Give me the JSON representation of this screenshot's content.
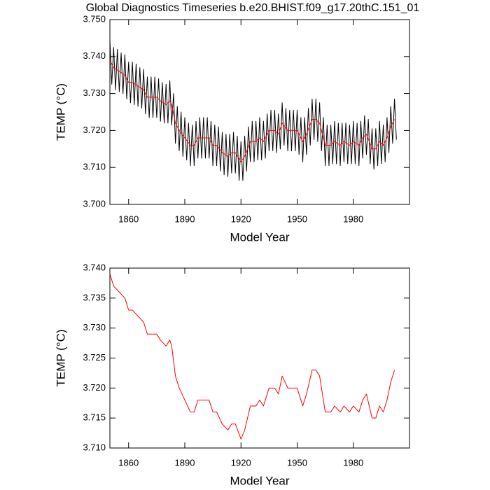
{
  "chart_data": [
    {
      "type": "line",
      "title": "Global Diagnostics Timeseries b.e20.BHIST.f09_g17.20thC.151_01",
      "xlabel": "Model Year",
      "ylabel": "TEMP (°C)",
      "xlim": [
        1850,
        2010
      ],
      "xticks": [
        1860,
        1890,
        1920,
        1950,
        1980
      ],
      "ylim": [
        3.7,
        3.75
      ],
      "yticks": [
        {
          "value": 3.7,
          "label": "3.700"
        },
        {
          "value": 3.71,
          "label": "3.710"
        },
        {
          "value": 3.72,
          "label": "3.720"
        },
        {
          "value": 3.73,
          "label": "3.730"
        },
        {
          "value": 3.74,
          "label": "3.740"
        },
        {
          "value": 3.75,
          "label": "3.750"
        }
      ],
      "series": [
        {
          "color": "#000000",
          "x": [
            1850,
            1851,
            1852,
            1853,
            1854,
            1855,
            1856,
            1857,
            1858,
            1859,
            1860,
            1861,
            1862,
            1863,
            1864,
            1865,
            1866,
            1867,
            1868,
            1869,
            1870,
            1871,
            1872,
            1873,
            1874,
            1875,
            1876,
            1877,
            1878,
            1879,
            1880,
            1881,
            1882,
            1883,
            1884,
            1885,
            1886,
            1887,
            1888,
            1889,
            1890,
            1891,
            1892,
            1893,
            1894,
            1895,
            1896,
            1897,
            1898,
            1899,
            1900,
            1901,
            1902,
            1903,
            1904,
            1905,
            1906,
            1907,
            1908,
            1909,
            1910,
            1911,
            1912,
            1913,
            1914,
            1915,
            1916,
            1917,
            1918,
            1919,
            1920,
            1921,
            1922,
            1923,
            1924,
            1925,
            1926,
            1927,
            1928,
            1929,
            1930,
            1931,
            1932,
            1933,
            1934,
            1935,
            1936,
            1937,
            1938,
            1939,
            1940,
            1941,
            1942,
            1943,
            1944,
            1945,
            1946,
            1947,
            1948,
            1949,
            1950,
            1951,
            1952,
            1953,
            1954,
            1955,
            1956,
            1957,
            1958,
            1959,
            1960,
            1961,
            1962,
            1963,
            1964,
            1965,
            1966,
            1967,
            1968,
            1969,
            1970,
            1971,
            1972,
            1973,
            1974,
            1975,
            1976,
            1977,
            1978,
            1979,
            1980,
            1981,
            1982,
            1983,
            1984,
            1985,
            1986,
            1987,
            1988,
            1989,
            1990,
            1991,
            1992,
            1993,
            1994,
            1995,
            1996,
            1997,
            1998,
            1999,
            2000,
            2001,
            2002,
            2003
          ],
          "values": [
            3.7445,
            3.7325,
            3.7425,
            3.731,
            3.742,
            3.7305,
            3.741,
            3.73,
            3.7405,
            3.7285,
            3.7385,
            3.7275,
            3.7385,
            3.727,
            3.738,
            3.7265,
            3.737,
            3.726,
            3.7365,
            3.7245,
            3.7345,
            3.7235,
            3.7345,
            3.7235,
            3.7345,
            3.7235,
            3.734,
            3.7225,
            3.733,
            3.722,
            3.7325,
            3.722,
            3.7335,
            3.7215,
            3.73,
            3.7165,
            3.7265,
            3.7145,
            3.725,
            3.713,
            3.7235,
            3.712,
            3.722,
            3.7105,
            3.7215,
            3.7105,
            3.7225,
            3.7125,
            3.7235,
            3.7125,
            3.7235,
            3.7125,
            3.7235,
            3.7125,
            3.7225,
            3.7105,
            3.7215,
            3.7105,
            3.721,
            3.709,
            3.7195,
            3.708,
            3.719,
            3.7075,
            3.719,
            3.7085,
            3.7195,
            3.7085,
            3.7185,
            3.7065,
            3.717,
            3.7065,
            3.7185,
            3.709,
            3.721,
            3.7115,
            3.7225,
            3.7115,
            3.7225,
            3.712,
            3.7235,
            3.712,
            3.7225,
            3.7125,
            3.7245,
            3.7145,
            3.7255,
            3.7145,
            3.7255,
            3.714,
            3.7245,
            3.715,
            3.7275,
            3.716,
            3.726,
            3.7145,
            3.7255,
            3.7145,
            3.7255,
            3.7145,
            3.7255,
            3.7135,
            3.7235,
            3.7115,
            3.7235,
            3.7135,
            3.726,
            3.716,
            3.7285,
            3.7175,
            3.7285,
            3.717,
            3.7275,
            3.7145,
            3.7235,
            3.7105,
            3.7215,
            3.7105,
            3.7215,
            3.711,
            3.7225,
            3.711,
            3.722,
            3.7105,
            3.722,
            3.7115,
            3.722,
            3.711,
            3.7215,
            3.711,
            3.7225,
            3.711,
            3.722,
            3.7105,
            3.7225,
            3.7125,
            3.724,
            3.7135,
            3.723,
            3.711,
            3.7205,
            3.7095,
            3.7205,
            3.7105,
            3.7225,
            3.711,
            3.7215,
            3.7115,
            3.7235,
            3.714,
            3.7265,
            3.7165,
            3.7285,
            3.7175
          ]
        },
        {
          "color": "#ff0000",
          "x": [
            1850,
            1852,
            1855,
            1858,
            1860,
            1862,
            1865,
            1868,
            1870,
            1873,
            1875,
            1877,
            1880,
            1882,
            1883,
            1885,
            1887,
            1890,
            1893,
            1895,
            1897,
            1900,
            1903,
            1905,
            1907,
            1910,
            1913,
            1915,
            1917,
            1920,
            1922,
            1925,
            1928,
            1930,
            1932,
            1935,
            1938,
            1940,
            1942,
            1945,
            1948,
            1950,
            1953,
            1955,
            1958,
            1960,
            1962,
            1965,
            1968,
            1970,
            1973,
            1975,
            1978,
            1980,
            1983,
            1985,
            1987,
            1990,
            1992,
            1994,
            1996,
            1998,
            2000,
            2002
          ],
          "values": [
            3.739,
            3.737,
            3.736,
            3.735,
            3.733,
            3.733,
            3.732,
            3.731,
            3.729,
            3.729,
            3.729,
            3.728,
            3.727,
            3.728,
            3.727,
            3.722,
            3.72,
            3.718,
            3.716,
            3.716,
            3.718,
            3.718,
            3.718,
            3.716,
            3.716,
            3.714,
            3.713,
            3.714,
            3.714,
            3.7115,
            3.713,
            3.717,
            3.717,
            3.718,
            3.717,
            3.72,
            3.72,
            3.719,
            3.722,
            3.72,
            3.72,
            3.72,
            3.717,
            3.719,
            3.723,
            3.723,
            3.722,
            3.716,
            3.716,
            3.717,
            3.716,
            3.717,
            3.716,
            3.717,
            3.716,
            3.718,
            3.719,
            3.715,
            3.715,
            3.717,
            3.716,
            3.718,
            3.721,
            3.723
          ]
        }
      ]
    },
    {
      "type": "line",
      "xlabel": "Model Year",
      "ylabel": "TEMP (°C)",
      "xlim": [
        1850,
        2010
      ],
      "xticks": [
        1860,
        1890,
        1920,
        1950,
        1980
      ],
      "ylim": [
        3.71,
        3.74
      ],
      "yticks": [
        {
          "value": 3.71,
          "label": "3.710"
        },
        3.715,
        {
          "value": 3.72,
          "label": "3.720"
        },
        3.725,
        {
          "value": 3.73,
          "label": "3.730"
        },
        3.735,
        {
          "value": 3.74,
          "label": "3.740"
        }
      ],
      "series": [
        {
          "color": "#ff0000",
          "x": [
            1850,
            1852,
            1855,
            1858,
            1860,
            1862,
            1865,
            1868,
            1870,
            1873,
            1875,
            1877,
            1880,
            1882,
            1883,
            1885,
            1887,
            1890,
            1893,
            1895,
            1897,
            1900,
            1903,
            1905,
            1907,
            1910,
            1913,
            1915,
            1917,
            1920,
            1922,
            1925,
            1928,
            1930,
            1932,
            1935,
            1938,
            1940,
            1942,
            1945,
            1948,
            1950,
            1953,
            1955,
            1958,
            1960,
            1962,
            1965,
            1968,
            1970,
            1973,
            1975,
            1978,
            1980,
            1983,
            1985,
            1987,
            1990,
            1992,
            1994,
            1996,
            1998,
            2000,
            2002
          ],
          "values": [
            3.739,
            3.737,
            3.736,
            3.735,
            3.733,
            3.733,
            3.732,
            3.731,
            3.729,
            3.729,
            3.729,
            3.728,
            3.727,
            3.728,
            3.727,
            3.722,
            3.72,
            3.718,
            3.716,
            3.716,
            3.718,
            3.718,
            3.718,
            3.716,
            3.716,
            3.714,
            3.713,
            3.714,
            3.714,
            3.7115,
            3.713,
            3.717,
            3.717,
            3.718,
            3.717,
            3.72,
            3.72,
            3.719,
            3.722,
            3.72,
            3.72,
            3.72,
            3.717,
            3.719,
            3.723,
            3.723,
            3.722,
            3.716,
            3.716,
            3.717,
            3.716,
            3.717,
            3.716,
            3.717,
            3.716,
            3.718,
            3.719,
            3.715,
            3.715,
            3.717,
            3.716,
            3.718,
            3.721,
            3.723
          ]
        }
      ]
    }
  ]
}
